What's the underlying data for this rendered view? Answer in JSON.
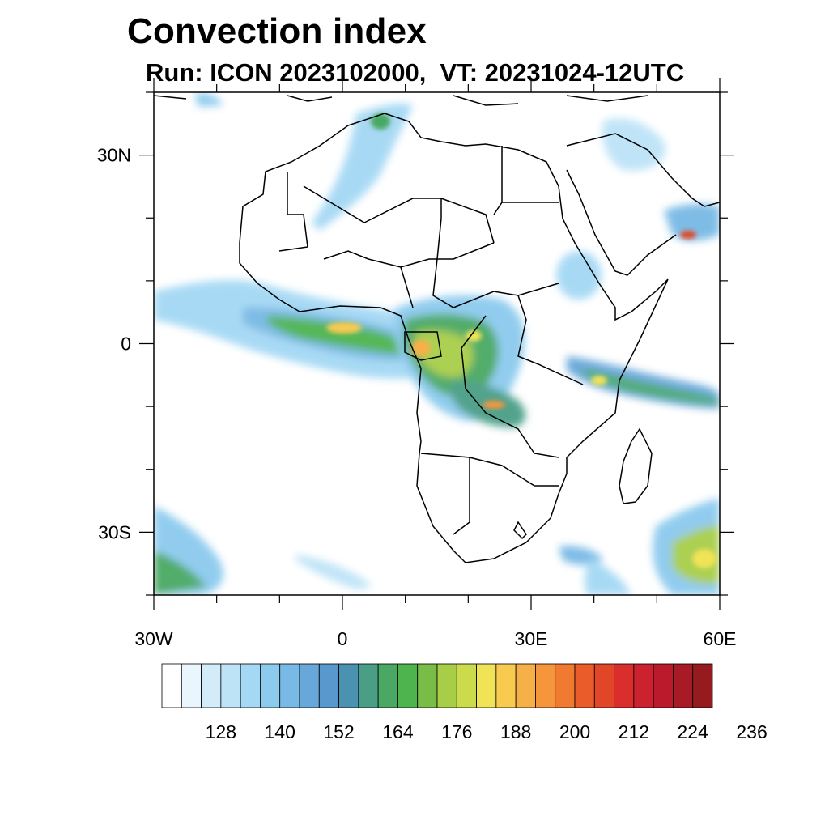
{
  "title": "Convection index",
  "subtitle": "Run: ICON 2023102000,  VT: 20231024-12UTC",
  "map": {
    "region": "Africa",
    "lon_range": [
      -30,
      60
    ],
    "lat_range": [
      -40,
      40
    ],
    "lon_ticks": [
      {
        "value": -30,
        "label": "30W"
      },
      {
        "value": 0,
        "label": "0"
      },
      {
        "value": 30,
        "label": "30E"
      },
      {
        "value": 60,
        "label": "60E"
      }
    ],
    "lat_ticks": [
      {
        "value": 30,
        "label": "30N"
      },
      {
        "value": 0,
        "label": "0"
      },
      {
        "value": -30,
        "label": "30S"
      }
    ]
  },
  "colorbar": {
    "colors": [
      "#ffffff",
      "#eaf6fd",
      "#d3ecf9",
      "#bde3f7",
      "#a4d8f4",
      "#8ccaee",
      "#78b9e5",
      "#67a7da",
      "#5898cc",
      "#4a92b0",
      "#4a9e86",
      "#4aa864",
      "#4eb44d",
      "#7abc48",
      "#a8ce48",
      "#ccdb4c",
      "#f0e356",
      "#f8cb50",
      "#f6b048",
      "#f5963c",
      "#ef7a30",
      "#ea5c2a",
      "#e24628",
      "#da2e2c",
      "#cc2230",
      "#bb1a2c",
      "#a81a26",
      "#951b1f"
    ],
    "labels": [
      "128",
      "140",
      "152",
      "164",
      "176",
      "188",
      "200",
      "212",
      "224",
      "236"
    ]
  }
}
